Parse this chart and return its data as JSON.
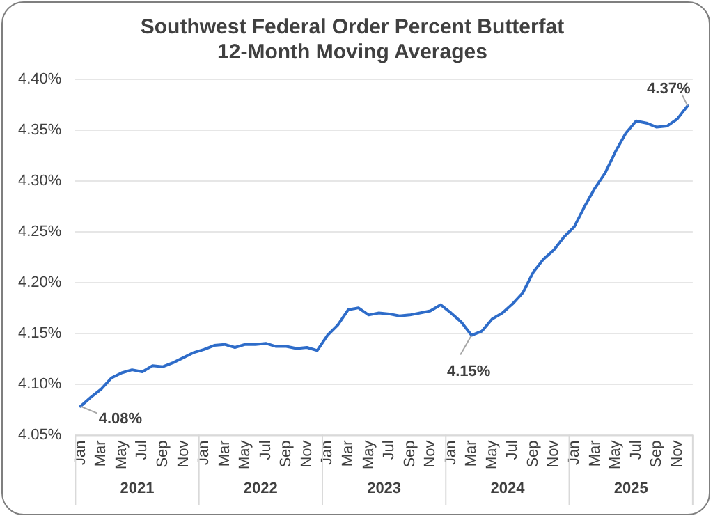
{
  "chart_data": {
    "type": "line",
    "title": "Southwest Federal Order Percent Butterfat\n12-Month Moving Averages",
    "categories": [
      "Jan",
      null,
      "Mar",
      null,
      "May",
      null,
      "Jul",
      null,
      "Sep",
      null,
      "Nov",
      null,
      "Jan",
      null,
      "Mar",
      null,
      "May",
      null,
      "Jul",
      null,
      "Sep",
      null,
      "Nov",
      null,
      "Jan",
      null,
      "Mar",
      null,
      "May",
      null,
      "Jul",
      null,
      "Sep",
      null,
      "Nov",
      null,
      "Jan",
      null,
      "Mar",
      null,
      "May",
      null,
      "Jul",
      null,
      "Sep",
      null,
      "Nov",
      null,
      "Jan",
      null,
      "Mar",
      null,
      "May",
      null,
      "Jul",
      null,
      "Sep",
      null,
      "Nov",
      null
    ],
    "series": [
      {
        "color": "#2e6cc9",
        "values": [
          4.078,
          4.087,
          4.095,
          4.106,
          4.111,
          4.114,
          4.112,
          4.118,
          4.117,
          4.121,
          4.126,
          4.131,
          4.134,
          4.138,
          4.139,
          4.136,
          4.139,
          4.139,
          4.14,
          4.137,
          4.137,
          4.135,
          4.136,
          4.133,
          4.148,
          4.158,
          4.173,
          4.175,
          4.168,
          4.17,
          4.169,
          4.167,
          4.168,
          4.17,
          4.172,
          4.178,
          4.17,
          4.161,
          4.148,
          4.152,
          4.164,
          4.17,
          4.179,
          4.19,
          4.21,
          4.223,
          4.232,
          4.245,
          4.255,
          4.275,
          4.293,
          4.308,
          4.329,
          4.347,
          4.359,
          4.357,
          4.353,
          4.354,
          4.361,
          4.374
        ],
        "value_labels": [
          "4.08%",
          null,
          null,
          null,
          null,
          null,
          null,
          null,
          null,
          null,
          null,
          null,
          null,
          null,
          null,
          null,
          null,
          null,
          null,
          null,
          null,
          null,
          null,
          null,
          null,
          null,
          null,
          null,
          null,
          null,
          null,
          null,
          null,
          null,
          null,
          null,
          null,
          null,
          "4.15%",
          null,
          null,
          null,
          null,
          null,
          null,
          null,
          null,
          null,
          null,
          null,
          null,
          null,
          null,
          null,
          null,
          null,
          null,
          null,
          null,
          "4.37%"
        ]
      }
    ],
    "annotations": [
      "2021",
      "2022",
      "2023",
      "2024",
      "2025"
    ],
    "ylim": [
      4.05,
      4.4
    ],
    "yticks": [
      {
        "value": 4.05,
        "label": "4.05%"
      },
      {
        "value": 4.1,
        "label": "4.10%"
      },
      {
        "value": 4.15,
        "label": "4.15%"
      },
      {
        "value": 4.2,
        "label": "4.20%"
      },
      {
        "value": 4.25,
        "label": "4.25%"
      },
      {
        "value": 4.3,
        "label": "4.30%"
      },
      {
        "value": 4.35,
        "label": "4.35%"
      },
      {
        "value": 4.4,
        "label": "4.40%"
      }
    ],
    "grid": "y",
    "legend": false,
    "marker": "none",
    "line_style": "solid"
  }
}
